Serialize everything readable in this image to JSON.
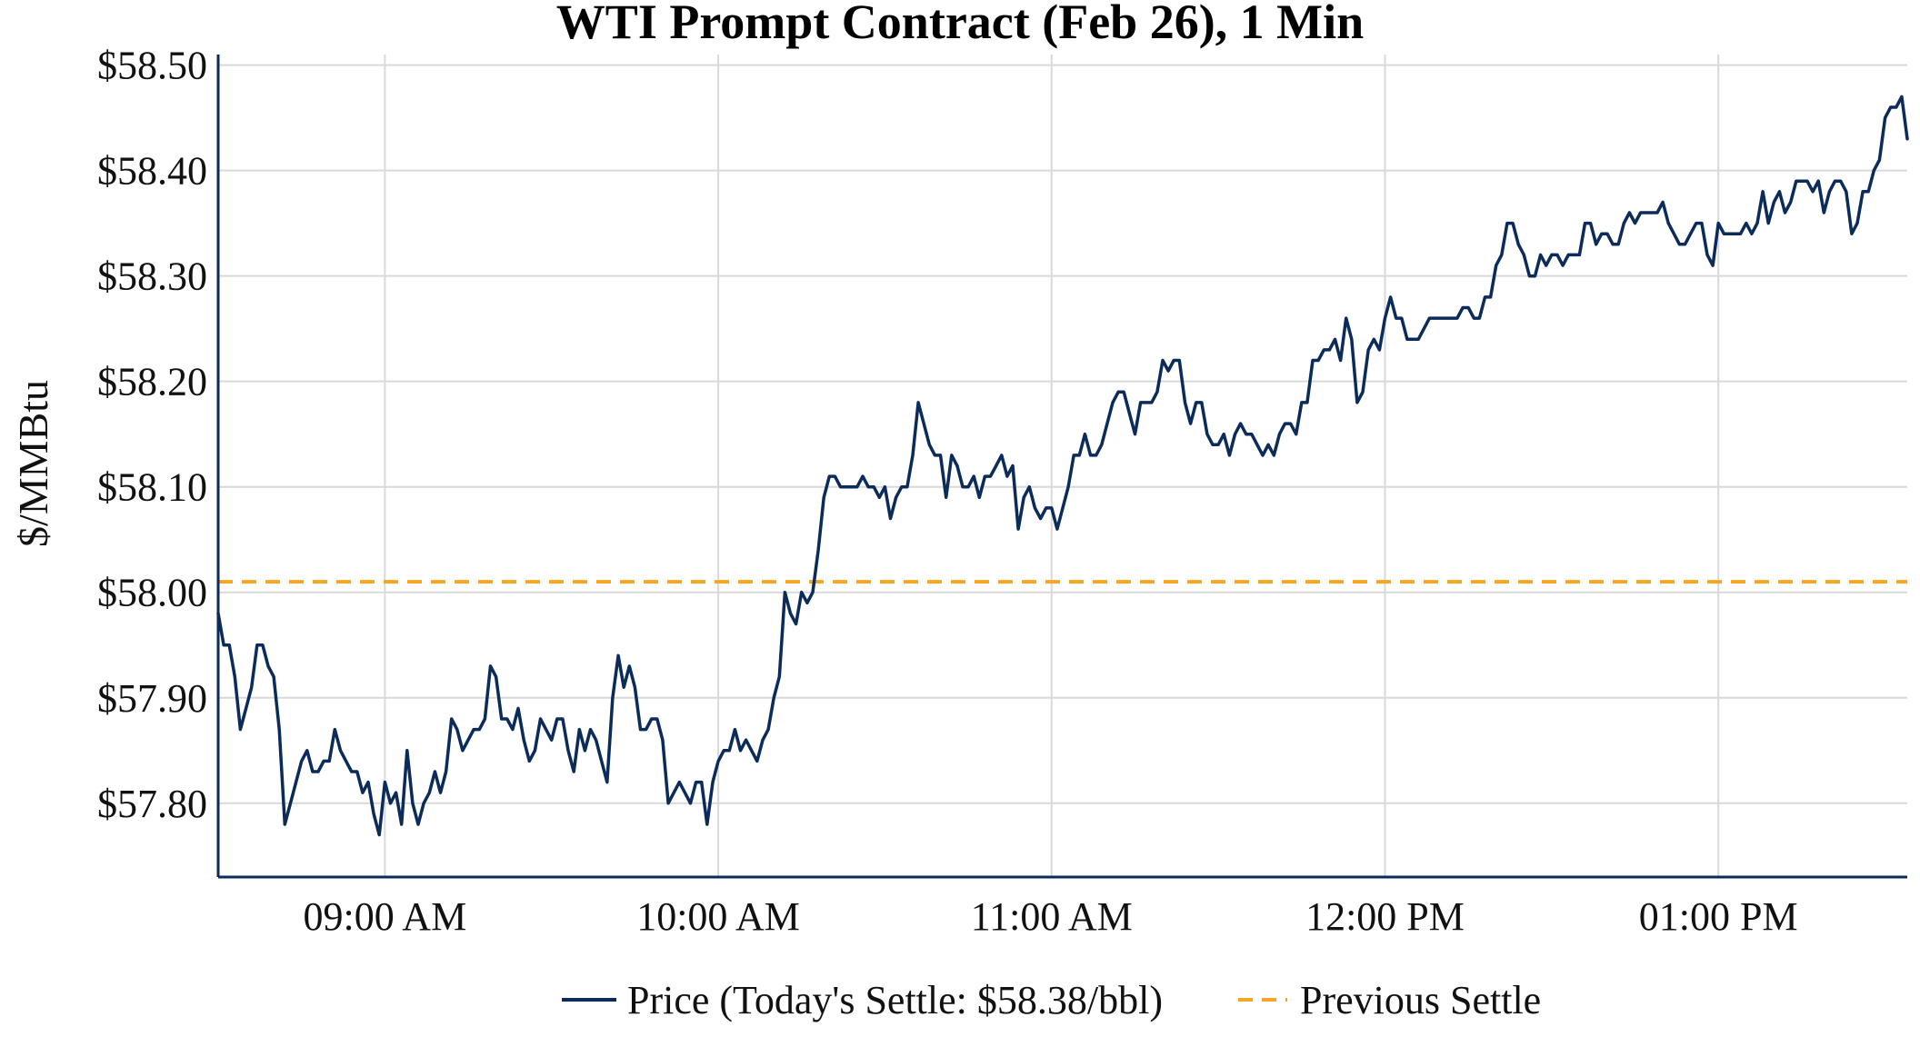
{
  "chart_data": {
    "type": "line",
    "title": "WTI Prompt Contract (Feb 26), 1 Min",
    "xlabel": "",
    "ylabel": "$/MMBtu",
    "ylim": [
      57.73,
      58.51
    ],
    "yticks": [
      57.8,
      57.9,
      58.0,
      58.1,
      58.2,
      58.3,
      58.4,
      58.5
    ],
    "ytick_labels": [
      "$57.80",
      "$57.90",
      "$58.00",
      "$58.10",
      "$58.20",
      "$58.30",
      "$58.40",
      "$58.50"
    ],
    "x_unit": "minutes after midnight",
    "xlim": [
      510,
      814
    ],
    "xticks": [
      540,
      600,
      660,
      720,
      780
    ],
    "xtick_labels": [
      "09:00 AM",
      "10:00 AM",
      "11:00 AM",
      "12:00 PM",
      "01:00 PM"
    ],
    "grid": true,
    "legend_position": "bottom-center",
    "colors": {
      "price": "#0b2b5a",
      "previous_settle": "#f5a623",
      "axis": "#0b2b5a",
      "grid": "#d9d9d9"
    },
    "series": [
      {
        "name": "Price (Today's Settle: $58.38/bbl)",
        "style": "solid",
        "x_start": 510,
        "x_step": 1,
        "values": [
          57.98,
          57.95,
          57.95,
          57.92,
          57.87,
          57.89,
          57.91,
          57.95,
          57.95,
          57.93,
          57.92,
          57.87,
          57.78,
          57.8,
          57.82,
          57.84,
          57.85,
          57.83,
          57.83,
          57.84,
          57.84,
          57.87,
          57.85,
          57.84,
          57.83,
          57.83,
          57.81,
          57.82,
          57.79,
          57.77,
          57.82,
          57.8,
          57.81,
          57.78,
          57.85,
          57.8,
          57.78,
          57.8,
          57.81,
          57.83,
          57.81,
          57.83,
          57.88,
          57.87,
          57.85,
          57.86,
          57.87,
          57.87,
          57.88,
          57.93,
          57.92,
          57.88,
          57.88,
          57.87,
          57.89,
          57.86,
          57.84,
          57.85,
          57.88,
          57.87,
          57.86,
          57.88,
          57.88,
          57.85,
          57.83,
          57.87,
          57.85,
          57.87,
          57.86,
          57.84,
          57.82,
          57.9,
          57.94,
          57.91,
          57.93,
          57.91,
          57.87,
          57.87,
          57.88,
          57.88,
          57.86,
          57.8,
          57.81,
          57.82,
          57.81,
          57.8,
          57.82,
          57.82,
          57.78,
          57.82,
          57.84,
          57.85,
          57.85,
          57.87,
          57.85,
          57.86,
          57.85,
          57.84,
          57.86,
          57.87,
          57.9,
          57.92,
          58.0,
          57.98,
          57.97,
          58.0,
          57.99,
          58.0,
          58.04,
          58.09,
          58.11,
          58.11,
          58.1,
          58.1,
          58.1,
          58.1,
          58.11,
          58.1,
          58.1,
          58.09,
          58.1,
          58.07,
          58.09,
          58.1,
          58.1,
          58.13,
          58.18,
          58.16,
          58.14,
          58.13,
          58.13,
          58.09,
          58.13,
          58.12,
          58.1,
          58.1,
          58.11,
          58.09,
          58.11,
          58.11,
          58.12,
          58.13,
          58.11,
          58.12,
          58.06,
          58.09,
          58.1,
          58.08,
          58.07,
          58.08,
          58.08,
          58.06,
          58.08,
          58.1,
          58.13,
          58.13,
          58.15,
          58.13,
          58.13,
          58.14,
          58.16,
          58.18,
          58.19,
          58.19,
          58.17,
          58.15,
          58.18,
          58.18,
          58.18,
          58.19,
          58.22,
          58.21,
          58.22,
          58.22,
          58.18,
          58.16,
          58.18,
          58.18,
          58.15,
          58.14,
          58.14,
          58.15,
          58.13,
          58.15,
          58.16,
          58.15,
          58.15,
          58.14,
          58.13,
          58.14,
          58.13,
          58.15,
          58.16,
          58.16,
          58.15,
          58.18,
          58.18,
          58.22,
          58.22,
          58.23,
          58.23,
          58.24,
          58.22,
          58.26,
          58.24,
          58.18,
          58.19,
          58.23,
          58.24,
          58.23,
          58.26,
          58.28,
          58.26,
          58.26,
          58.24,
          58.24,
          58.24,
          58.25,
          58.26,
          58.26,
          58.26,
          58.26,
          58.26,
          58.26,
          58.27,
          58.27,
          58.26,
          58.26,
          58.28,
          58.28,
          58.31,
          58.32,
          58.35,
          58.35,
          58.33,
          58.32,
          58.3,
          58.3,
          58.32,
          58.31,
          58.32,
          58.32,
          58.31,
          58.32,
          58.32,
          58.32,
          58.35,
          58.35,
          58.33,
          58.34,
          58.34,
          58.33,
          58.33,
          58.35,
          58.36,
          58.35,
          58.36,
          58.36,
          58.36,
          58.36,
          58.37,
          58.35,
          58.34,
          58.33,
          58.33,
          58.34,
          58.35,
          58.35,
          58.32,
          58.31,
          58.35,
          58.34,
          58.34,
          58.34,
          58.34,
          58.35,
          58.34,
          58.35,
          58.38,
          58.35,
          58.37,
          58.38,
          58.36,
          58.37,
          58.39,
          58.39,
          58.39,
          58.38,
          58.39,
          58.36,
          58.38,
          58.39,
          58.39,
          58.38,
          58.34,
          58.35,
          58.38,
          58.38,
          58.4,
          58.41,
          58.45,
          58.46,
          58.46,
          58.47,
          58.43
        ]
      },
      {
        "name": "Previous Settle",
        "style": "dashed",
        "values": [
          58.01
        ]
      }
    ]
  }
}
